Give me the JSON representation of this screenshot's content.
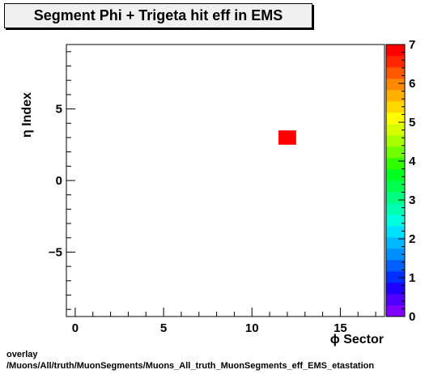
{
  "chart_data": {
    "type": "heatmap",
    "title": "Segment Phi + Trigeta hit eff in EMS",
    "xlabel": "ϕ Sector",
    "ylabel": "η Index",
    "xlim": [
      -0.5,
      17.5
    ],
    "ylim": [
      -9.5,
      9.5
    ],
    "x_ticks": [
      0,
      5,
      10,
      15
    ],
    "y_ticks": [
      -5,
      0,
      5
    ],
    "x_tick_labels": [
      "0",
      "5",
      "10",
      "15"
    ],
    "y_tick_labels": [
      "−5",
      "0",
      "5"
    ],
    "z_range": [
      0,
      7
    ],
    "z_ticks": [
      0,
      1,
      2,
      3,
      4,
      5,
      6,
      7
    ],
    "z_tick_labels": [
      "0",
      "1",
      "2",
      "3",
      "4",
      "5",
      "6",
      "7"
    ],
    "cells": [
      {
        "x": 12,
        "y": 3,
        "value": 7
      }
    ],
    "palette": [
      "#7f00ff",
      "#5000ff",
      "#2000ff",
      "#0030ff",
      "#0060ff",
      "#0090ff",
      "#00b8ff",
      "#00e0ff",
      "#00ffe0",
      "#00ffb0",
      "#00ff80",
      "#00ff50",
      "#00ff20",
      "#30ff00",
      "#70ff00",
      "#a8ff00",
      "#d8ff00",
      "#ffff00",
      "#ffd800",
      "#ffb000",
      "#ff8800",
      "#ff5800",
      "#ff2800",
      "#ff0000"
    ],
    "grid": false,
    "legend": "colorbar-right"
  },
  "footer": {
    "line1": "overlay",
    "line2": "/Muons/All/truth/MuonSegments/Muons_All_truth_MuonSegments_eff_EMS_etastation"
  }
}
